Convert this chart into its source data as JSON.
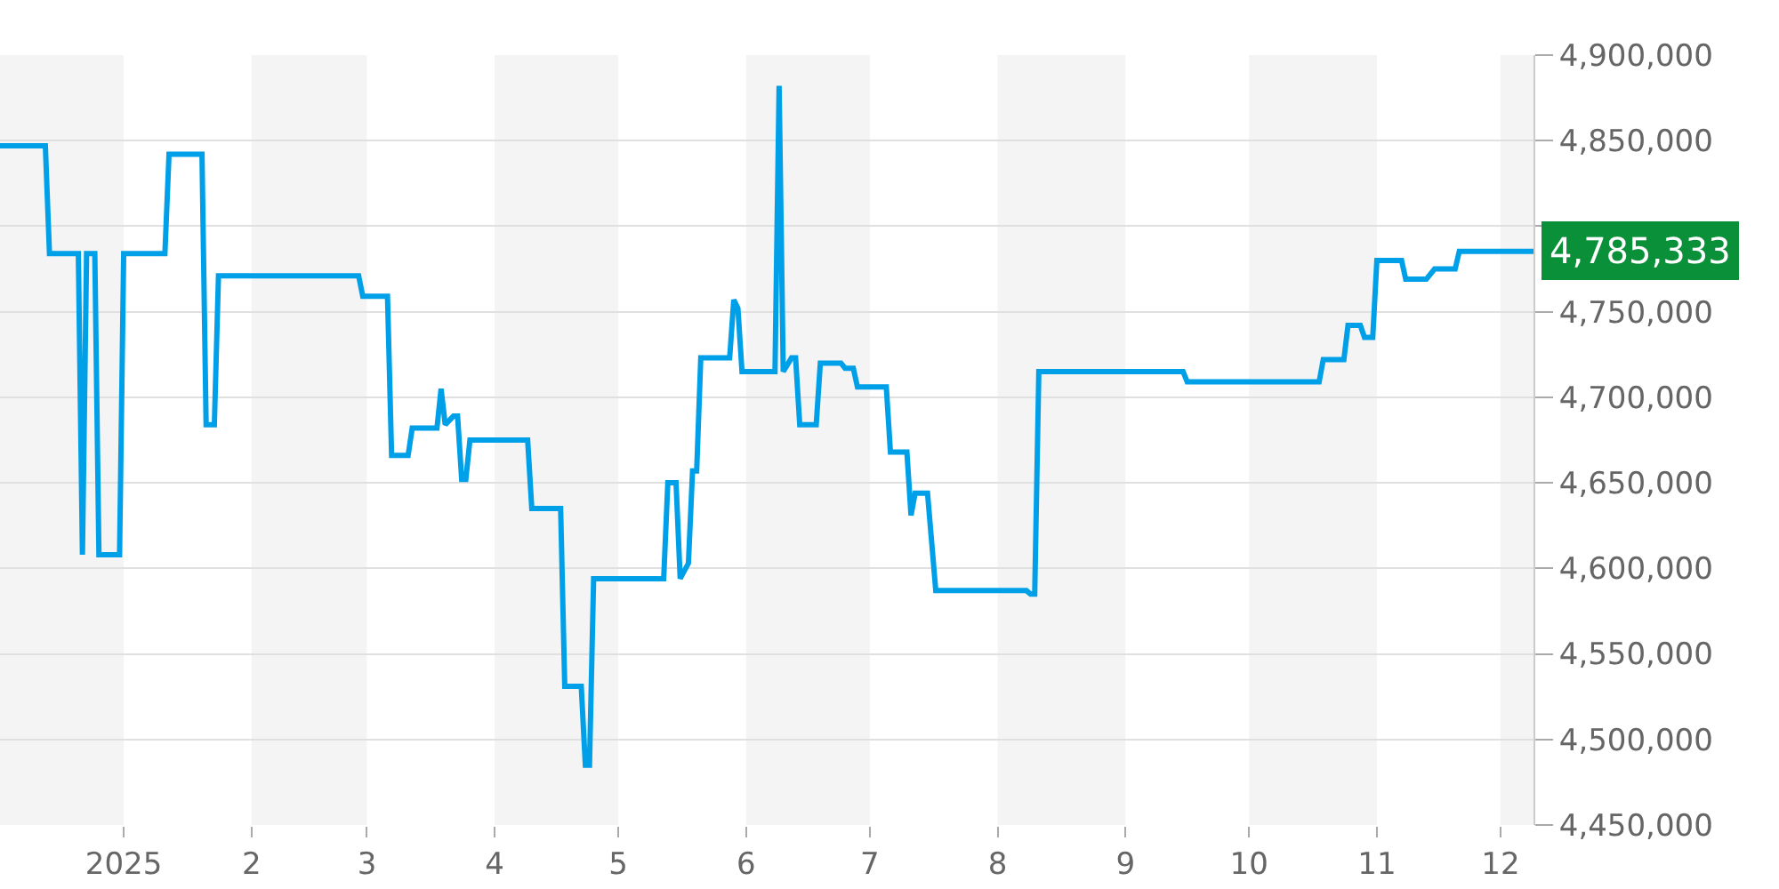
{
  "chart_data": {
    "type": "line",
    "xlim": [
      "2024-12-02",
      "2025-12-09"
    ],
    "xticks": [
      {
        "value": "2025-01-01",
        "label": "2025"
      },
      {
        "value": "2025-02-01",
        "label": "2"
      },
      {
        "value": "2025-03-01",
        "label": "3"
      },
      {
        "value": "2025-04-01",
        "label": "4"
      },
      {
        "value": "2025-05-01",
        "label": "5"
      },
      {
        "value": "2025-06-01",
        "label": "6"
      },
      {
        "value": "2025-07-01",
        "label": "7"
      },
      {
        "value": "2025-08-01",
        "label": "8"
      },
      {
        "value": "2025-09-01",
        "label": "9"
      },
      {
        "value": "2025-10-01",
        "label": "10"
      },
      {
        "value": "2025-11-01",
        "label": "11"
      },
      {
        "value": "2025-12-01",
        "label": "12"
      }
    ],
    "ylim": [
      4450000,
      4900000
    ],
    "yticks": [
      {
        "value": 4450000,
        "label": "4,450,000"
      },
      {
        "value": 4500000,
        "label": "4,500,000"
      },
      {
        "value": 4550000,
        "label": "4,550,000"
      },
      {
        "value": 4600000,
        "label": "4,600,000"
      },
      {
        "value": 4650000,
        "label": "4,650,000"
      },
      {
        "value": 4700000,
        "label": "4,700,000"
      },
      {
        "value": 4750000,
        "label": "4,750,000"
      },
      {
        "value": 4800000,
        "label": null
      },
      {
        "value": 4850000,
        "label": "4,850,000"
      },
      {
        "value": 4900000,
        "label": "4,900,000"
      }
    ],
    "grid": "y",
    "bands": [
      {
        "axis": "x",
        "from": "2024-12-02",
        "to": "2025-01-01",
        "color": "#f4f4f4"
      },
      {
        "axis": "x",
        "from": "2025-02-01",
        "to": "2025-03-01",
        "color": "#f4f4f4"
      },
      {
        "axis": "x",
        "from": "2025-04-01",
        "to": "2025-05-01",
        "color": "#f4f4f4"
      },
      {
        "axis": "x",
        "from": "2025-06-01",
        "to": "2025-07-01",
        "color": "#f4f4f4"
      },
      {
        "axis": "x",
        "from": "2025-08-01",
        "to": "2025-09-01",
        "color": "#f4f4f4"
      },
      {
        "axis": "x",
        "from": "2025-10-01",
        "to": "2025-11-01",
        "color": "#f4f4f4"
      },
      {
        "axis": "x",
        "from": "2025-12-01",
        "to": "2025-12-09",
        "color": "#f4f4f4"
      }
    ],
    "annotations": [
      {
        "text": "4,785,333",
        "x": "2025-12-09",
        "y": 4785333
      }
    ],
    "series": [
      {
        "color": "#00a0e9",
        "marker": "none",
        "line_style": "solid",
        "x": [
          "2024-12-02",
          "2024-12-13",
          "2024-12-14",
          "2024-12-21",
          "2024-12-22",
          "2024-12-23",
          "2024-12-25",
          "2024-12-26",
          "2024-12-31",
          "2025-01-01",
          "2025-01-11",
          "2025-01-12",
          "2025-01-20",
          "2025-01-21",
          "2025-01-23",
          "2025-01-24",
          "2025-02-27",
          "2025-02-28",
          "2025-03-06",
          "2025-03-07",
          "2025-03-11",
          "2025-03-12",
          "2025-03-18",
          "2025-03-19",
          "2025-03-20",
          "2025-03-22",
          "2025-03-23",
          "2025-03-24",
          "2025-03-25",
          "2025-03-26",
          "2025-04-09",
          "2025-04-10",
          "2025-04-17",
          "2025-04-18",
          "2025-04-22",
          "2025-04-23",
          "2025-04-24",
          "2025-04-25",
          "2025-05-12",
          "2025-05-13",
          "2025-05-15",
          "2025-05-16",
          "2025-05-18",
          "2025-05-19",
          "2025-05-20",
          "2025-05-21",
          "2025-05-28",
          "2025-05-29",
          "2025-05-30",
          "2025-05-31",
          "2025-06-08",
          "2025-06-09",
          "2025-06-10",
          "2025-06-12",
          "2025-06-13",
          "2025-06-14",
          "2025-06-18",
          "2025-06-19",
          "2025-06-24",
          "2025-06-25",
          "2025-06-27",
          "2025-06-28",
          "2025-07-05",
          "2025-07-06",
          "2025-07-10",
          "2025-07-11",
          "2025-07-12",
          "2025-07-15",
          "2025-07-17",
          "2025-08-08",
          "2025-08-09",
          "2025-08-10",
          "2025-08-11",
          "2025-09-15",
          "2025-09-16",
          "2025-10-18",
          "2025-10-19",
          "2025-10-24",
          "2025-10-25",
          "2025-10-28",
          "2025-10-29",
          "2025-10-31",
          "2025-11-01",
          "2025-11-07",
          "2025-11-08",
          "2025-11-13",
          "2025-11-15",
          "2025-11-20",
          "2025-11-21",
          "2025-12-09"
        ],
        "values": [
          4847000,
          4847000,
          4784000,
          4784000,
          4608000,
          4784000,
          4784000,
          4608000,
          4608000,
          4784000,
          4784000,
          4842000,
          4842000,
          4684000,
          4684000,
          4771000,
          4771000,
          4759000,
          4759000,
          4666000,
          4666000,
          4682000,
          4682000,
          4705000,
          4684000,
          4689000,
          4689000,
          4652000,
          4652000,
          4675000,
          4675000,
          4635000,
          4635000,
          4531000,
          4531000,
          4485000,
          4485000,
          4594000,
          4594000,
          4650000,
          4650000,
          4594000,
          4603000,
          4657000,
          4657000,
          4723000,
          4723000,
          4757000,
          4752000,
          4715000,
          4715000,
          4882000,
          4715000,
          4723000,
          4723000,
          4684000,
          4684000,
          4720000,
          4720000,
          4717000,
          4717000,
          4706000,
          4706000,
          4668000,
          4668000,
          4631000,
          4644000,
          4644000,
          4587000,
          4587000,
          4585000,
          4585000,
          4715000,
          4715000,
          4709000,
          4709000,
          4722000,
          4722000,
          4742000,
          4742000,
          4735000,
          4735000,
          4780000,
          4780000,
          4769000,
          4769000,
          4775000,
          4775000,
          4785333,
          4785333
        ]
      }
    ]
  }
}
